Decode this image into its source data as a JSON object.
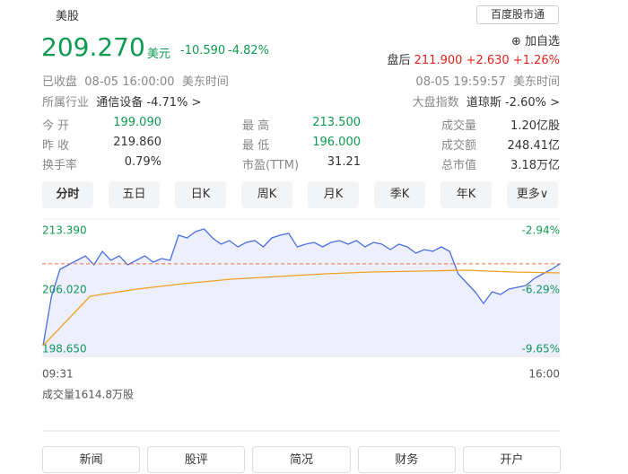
{
  "header": {
    "market": "美股",
    "service": "百度股市通"
  },
  "quote": {
    "price": 209.27,
    "price_label": "209.270",
    "currency": "美元",
    "change": "-10.590",
    "change_pct": "-4.82%",
    "watch": "⊕ 加自选",
    "after_label": "盘后",
    "after_price": "211.900",
    "after_change": "+2.630",
    "after_pct": "+1.26%",
    "status": "已收盘",
    "time": "08-05 16:00:00",
    "tz": "美东时间",
    "after_time": "08-05 19:59:57",
    "after_tz": "美东时间",
    "industry_label": "所属行业",
    "industry": "通信设备 -4.71% >",
    "index_label": "大盘指数",
    "index": "道琼斯 -2.60% >"
  },
  "stats": [
    [
      [
        "今 开",
        "199.090"
      ],
      [
        "最 高",
        "213.500"
      ],
      [
        "成交量",
        "1.20亿股"
      ]
    ],
    [
      [
        "昨 收",
        "219.860"
      ],
      [
        "最 低",
        "196.000"
      ],
      [
        "成交额",
        "248.41亿"
      ]
    ],
    [
      [
        "换手率",
        "0.79%"
      ],
      [
        "市盈(TTM)",
        "31.21"
      ],
      [
        "总市值",
        "3.18万亿"
      ]
    ]
  ],
  "tabs": [
    "分时",
    "五日",
    "日K",
    "周K",
    "月K",
    "季K",
    "年K",
    "更多∨"
  ],
  "chart_data": {
    "type": "line",
    "x_start": "09:31",
    "x_end": "16:00",
    "ylim": [
      198.65,
      213.39
    ],
    "yticks": [
      {
        "value": 213.39,
        "label": "213.390"
      },
      {
        "value": 206.02,
        "label": "206.020"
      },
      {
        "value": 198.65,
        "label": "198.650"
      }
    ],
    "y2lim": [
      -9.65,
      -2.94
    ],
    "y2ticks": [
      {
        "value": -2.94,
        "label": "-2.94%"
      },
      {
        "value": -6.29,
        "label": "-6.29%"
      },
      {
        "value": -9.65,
        "label": "-9.65%"
      }
    ],
    "series": [
      {
        "name": "价格",
        "color": "#4a6fe0",
        "values": [
          199.1,
          205.24,
          208.59,
          209.15,
          209.7,
          210.26,
          209.15,
          210.82,
          209.7,
          210.26,
          209.15,
          209.7,
          210.26,
          209.48,
          209.93,
          209.7,
          212.83,
          212.5,
          213.28,
          213.61,
          212.5,
          211.71,
          212.16,
          211.38,
          211.94,
          212.16,
          211.38,
          212.5,
          212.83,
          213.05,
          211.38,
          211.71,
          211.94,
          211.38,
          211.94,
          212.16,
          211.71,
          212.16,
          211.38,
          211.94,
          211.71,
          211.05,
          211.71,
          211.38,
          210.6,
          211.05,
          210.82,
          211.38,
          210.82,
          208.03,
          206.91,
          205.8,
          204.35,
          205.8,
          205.46,
          206.13,
          206.36,
          206.58,
          207.47,
          208.03,
          208.59,
          209.27
        ]
      },
      {
        "name": "均价",
        "color": "#f0a020",
        "values": [
          199.1,
          205.24,
          206.13,
          206.8,
          207.36,
          207.7,
          208.03,
          208.25,
          208.37,
          208.48,
          208.25,
          208.14
        ]
      }
    ],
    "volume_label": "成交量1614.8万股"
  },
  "buttons": [
    "新闻",
    "股评",
    "简况",
    "财务",
    "开户"
  ]
}
